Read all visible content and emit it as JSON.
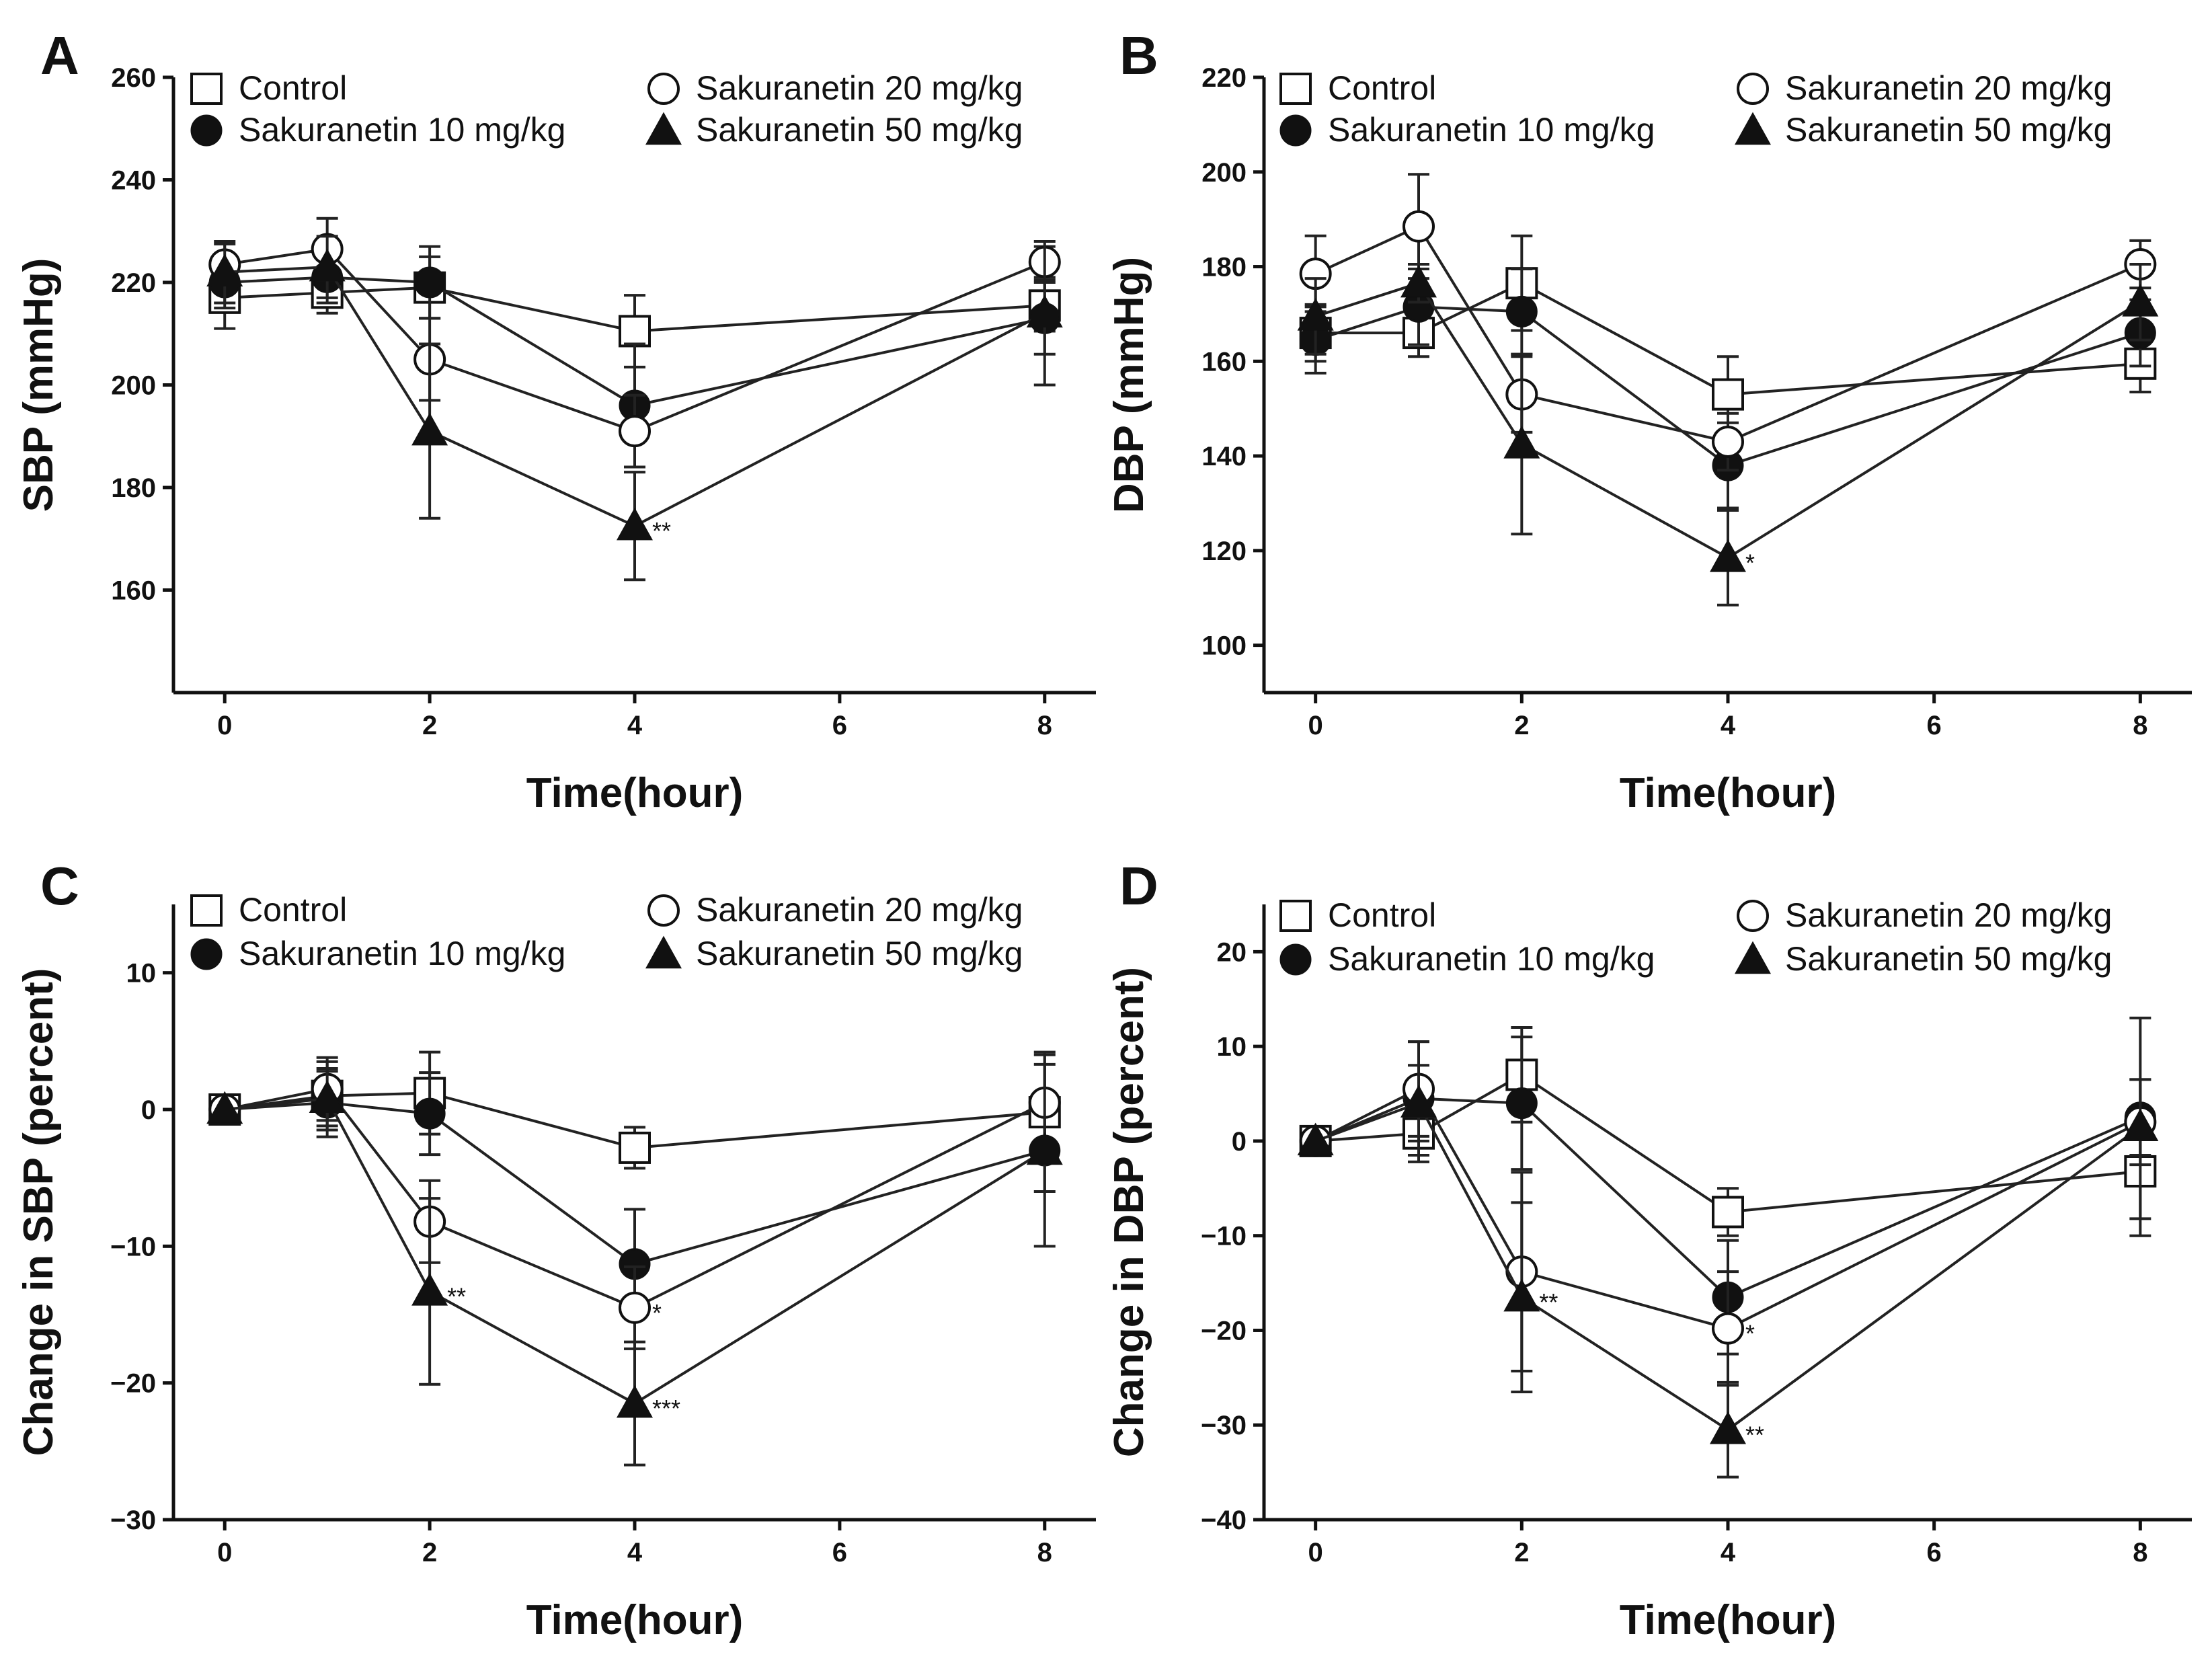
{
  "chart_data": [
    {
      "type": "line",
      "panel": "A",
      "title": "",
      "xlabel": "Time(hour)",
      "ylabel": "SBP (mmHg)",
      "xlim": [
        -0.5,
        8.5
      ],
      "ylim": [
        140,
        260
      ],
      "xticks": [
        0,
        2,
        4,
        6,
        8
      ],
      "yticks": [
        160,
        180,
        200,
        220,
        240,
        260
      ],
      "x": [
        0,
        1,
        2,
        4,
        8
      ],
      "grid": false,
      "legend_position": "top",
      "series": [
        {
          "name": "Control",
          "marker": "square-open",
          "values": [
            217,
            218,
            219,
            210.5,
            215.5
          ],
          "errors": [
            6,
            4,
            6,
            7,
            5
          ],
          "annotations": [
            "",
            "",
            "",
            "",
            ""
          ]
        },
        {
          "name": "Sakuranetin 10 mg/kg",
          "marker": "circle-filled",
          "values": [
            220,
            221,
            220,
            196,
            213
          ],
          "errors": [
            5,
            5,
            7,
            12,
            7
          ],
          "annotations": [
            "",
            "",
            "",
            "",
            ""
          ]
        },
        {
          "name": "Sakuranetin 20 mg/kg",
          "marker": "circle-open",
          "values": [
            223.5,
            226.5,
            205,
            191,
            224
          ],
          "errors": [
            4,
            6,
            8,
            7,
            3
          ],
          "annotations": [
            "",
            "",
            "",
            "",
            ""
          ]
        },
        {
          "name": "Sakuranetin 50 mg/kg",
          "marker": "triangle-filled",
          "values": [
            222,
            223,
            191,
            172.5,
            214
          ],
          "errors": [
            6,
            6,
            17,
            10.5,
            14
          ],
          "annotations": [
            "",
            "",
            "",
            "**",
            ""
          ]
        }
      ]
    },
    {
      "type": "line",
      "panel": "B",
      "title": "",
      "xlabel": "Time(hour)",
      "ylabel": "DBP (mmHg)",
      "xlim": [
        -0.5,
        8.5
      ],
      "ylim": [
        90,
        220
      ],
      "xticks": [
        0,
        2,
        4,
        6,
        8
      ],
      "yticks": [
        100,
        120,
        140,
        160,
        180,
        200,
        220
      ],
      "x": [
        0,
        1,
        2,
        4,
        8
      ],
      "grid": false,
      "legend_position": "top",
      "series": [
        {
          "name": "Control",
          "marker": "square-open",
          "values": [
            166,
            166,
            176.5,
            153,
            159.5
          ],
          "errors": [
            6,
            5,
            10,
            8,
            6
          ],
          "annotations": [
            "",
            "",
            "",
            "",
            ""
          ]
        },
        {
          "name": "Sakuranetin 10 mg/kg",
          "marker": "circle-filled",
          "values": [
            164.5,
            171.5,
            170.5,
            138,
            166
          ],
          "errors": [
            7,
            8,
            9,
            9,
            7
          ],
          "annotations": [
            "",
            "",
            "",
            "",
            ""
          ]
        },
        {
          "name": "Sakuranetin 20 mg/kg",
          "marker": "circle-open",
          "values": [
            178.5,
            188.5,
            153,
            143,
            180.5
          ],
          "errors": [
            8,
            11,
            8,
            6,
            5
          ],
          "annotations": [
            "",
            "",
            "",
            "",
            ""
          ]
        },
        {
          "name": "Sakuranetin 50 mg/kg",
          "marker": "triangle-filled",
          "values": [
            169.5,
            176.5,
            142.5,
            118.5,
            172.5
          ],
          "errors": [
            8,
            4,
            19,
            10,
            8
          ],
          "annotations": [
            "",
            "",
            "",
            "*",
            ""
          ]
        }
      ]
    },
    {
      "type": "line",
      "panel": "C",
      "title": "",
      "xlabel": "Time(hour)",
      "ylabel": "Change in SBP (percent)",
      "xlim": [
        -0.5,
        8.5
      ],
      "ylim": [
        -30,
        15
      ],
      "xticks": [
        0,
        2,
        4,
        6,
        8
      ],
      "yticks": [
        -30,
        -20,
        -10,
        0,
        10
      ],
      "x": [
        0,
        1,
        2,
        4,
        8
      ],
      "grid": false,
      "legend_position": "top",
      "series": [
        {
          "name": "Control",
          "marker": "square-open",
          "values": [
            0,
            1.0,
            1.2,
            -2.8,
            -0.2
          ],
          "errors": [
            0,
            2.5,
            3,
            1.5,
            3.5
          ],
          "annotations": [
            "",
            "",
            "",
            "",
            ""
          ]
        },
        {
          "name": "Sakuranetin 10 mg/kg",
          "marker": "circle-filled",
          "values": [
            0,
            0.5,
            -0.3,
            -11.3,
            -3.0
          ],
          "errors": [
            0,
            2.5,
            3,
            4,
            3
          ],
          "annotations": [
            "",
            "",
            "",
            "",
            ""
          ]
        },
        {
          "name": "Sakuranetin 20 mg/kg",
          "marker": "circle-open",
          "values": [
            0,
            1.5,
            -8.2,
            -14.5,
            0.5
          ],
          "errors": [
            0,
            2.3,
            3,
            3,
            3.7
          ],
          "annotations": [
            "",
            "",
            "",
            "*",
            ""
          ]
        },
        {
          "name": "Sakuranetin 50 mg/kg",
          "marker": "triangle-filled",
          "values": [
            0,
            0.8,
            -13.3,
            -21.5,
            -3.0
          ],
          "errors": [
            0,
            2,
            6.8,
            4.5,
            7
          ],
          "annotations": [
            "",
            "",
            "**",
            "***",
            ""
          ]
        }
      ]
    },
    {
      "type": "line",
      "panel": "D",
      "title": "",
      "xlabel": "Time(hour)",
      "ylabel": "Change in DBP (percent)",
      "xlim": [
        -0.5,
        8.5
      ],
      "ylim": [
        -40,
        25
      ],
      "xticks": [
        0,
        2,
        4,
        6,
        8
      ],
      "yticks": [
        -40,
        -30,
        -20,
        -10,
        0,
        10,
        20
      ],
      "x": [
        0,
        1,
        2,
        4,
        8
      ],
      "grid": false,
      "legend_position": "top",
      "series": [
        {
          "name": "Control",
          "marker": "square-open",
          "values": [
            0,
            0.8,
            7,
            -7.5,
            -3.2
          ],
          "errors": [
            0,
            3,
            5,
            2.5,
            5
          ],
          "annotations": [
            "",
            "",
            "",
            "",
            ""
          ]
        },
        {
          "name": "Sakuranetin 10 mg/kg",
          "marker": "circle-filled",
          "values": [
            0,
            4.5,
            4,
            -16.5,
            2.5
          ],
          "errors": [
            0,
            6,
            7,
            6,
            4
          ],
          "annotations": [
            "",
            "",
            "",
            "",
            ""
          ]
        },
        {
          "name": "Sakuranetin 20 mg/kg",
          "marker": "circle-open",
          "values": [
            0,
            5.5,
            -13.8,
            -19.8,
            2
          ],
          "errors": [
            0,
            5,
            10.5,
            6,
            4.5
          ],
          "annotations": [
            "",
            "",
            "",
            "*",
            ""
          ]
        },
        {
          "name": "Sakuranetin 50 mg/kg",
          "marker": "triangle-filled",
          "values": [
            0,
            4,
            -16.5,
            -30.5,
            1.5
          ],
          "errors": [
            0,
            4,
            10,
            5,
            11.5
          ],
          "annotations": [
            "",
            "",
            "**",
            "**",
            ""
          ]
        }
      ]
    }
  ]
}
